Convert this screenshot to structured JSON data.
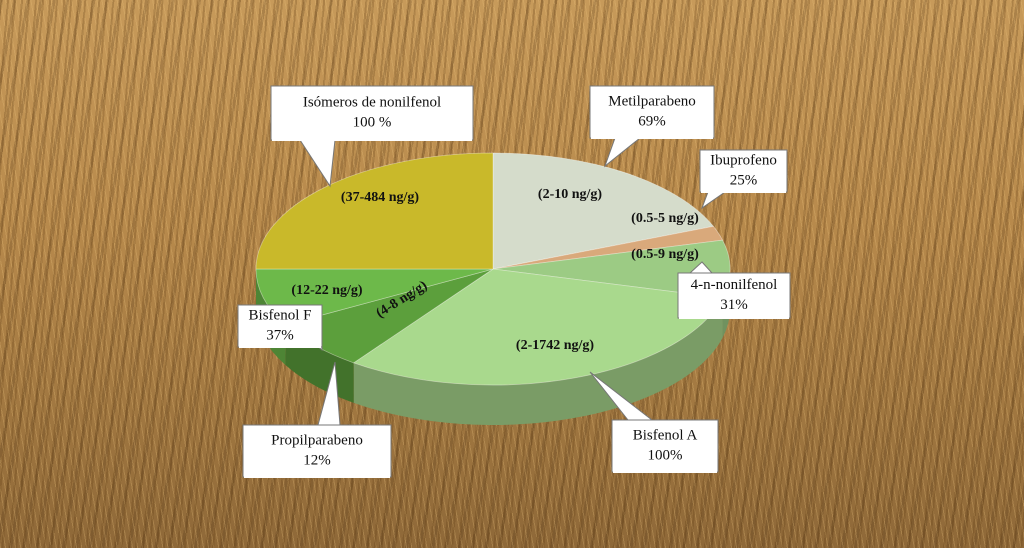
{
  "chart_data": {
    "type": "pie",
    "categories": [
      "Metilparabeno",
      "Ibuprofeno",
      "4-n-nonilfenol",
      "Bisfenol A",
      "Propilparabeno",
      "Bisfenol F",
      "Isómeros de nonilfenol"
    ],
    "values": [
      19,
      2,
      8,
      31,
      7,
      8,
      25
    ],
    "colors": [
      "#d5dccb",
      "#d9a97b",
      "#9ccb84",
      "#a9d98d",
      "#5c9f3c",
      "#6db94a",
      "#c9b92a"
    ],
    "frequency_labels": [
      "69%",
      "25%",
      "31%",
      "100%",
      "12%",
      "37%",
      "100 %"
    ],
    "range_labels": [
      "(2-10 ng/g)",
      "(0.5-5 ng/g)",
      "(0.5-9 ng/g)",
      "(2-1742 ng/g)",
      "(4-8 ng/g)",
      "(12-22 ng/g)",
      "(37-484 ng/g)"
    ]
  }
}
